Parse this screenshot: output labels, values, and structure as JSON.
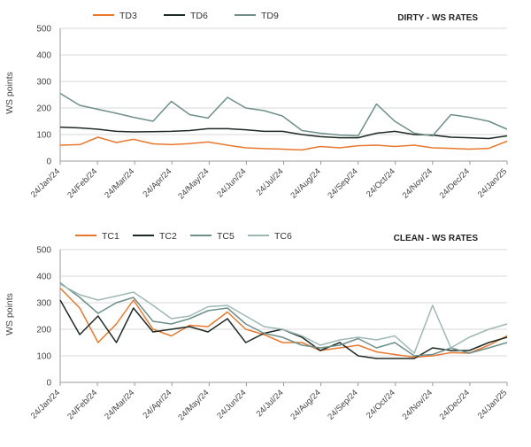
{
  "colors": {
    "TD3": "#e8782f",
    "TD6": "#1e2a24",
    "TD9": "#6e8f8a",
    "TC1": "#e8782f",
    "TC2": "#1e2a24",
    "TC5": "#6e8f8a",
    "TC6": "#9fb8b5"
  },
  "chart_data": [
    {
      "type": "line",
      "title": "DIRTY - WS RATES",
      "xlabel": "",
      "ylabel": "WS points",
      "ylim": [
        0,
        500
      ],
      "yticks": [
        0,
        100,
        200,
        300,
        400,
        500
      ],
      "grid": true,
      "legend": "top",
      "x_ticks": [
        "24/Jan/24",
        "24/Feb/24",
        "24/Mar/24",
        "24/Apr/24",
        "24/May/24",
        "24/Jun/24",
        "24/Jul/24",
        "24/Aug/24",
        "24/Sep/24",
        "24/Oct/24",
        "24/Nov/24",
        "24/Dec/24",
        "24/Jan/25"
      ],
      "x": [
        "2024-01-24",
        "2024-02-09",
        "2024-02-24",
        "2024-03-10",
        "2024-03-24",
        "2024-04-09",
        "2024-04-24",
        "2024-05-09",
        "2024-05-24",
        "2024-06-09",
        "2024-06-24",
        "2024-07-09",
        "2024-07-24",
        "2024-08-09",
        "2024-08-24",
        "2024-09-09",
        "2024-09-24",
        "2024-10-09",
        "2024-10-24",
        "2024-11-09",
        "2024-11-24",
        "2024-12-09",
        "2024-12-24",
        "2025-01-09",
        "2025-01-24"
      ],
      "series": [
        {
          "name": "TD3",
          "values": [
            60,
            62,
            90,
            70,
            82,
            65,
            62,
            66,
            72,
            60,
            50,
            47,
            45,
            42,
            55,
            50,
            58,
            60,
            55,
            60,
            50,
            48,
            45,
            48,
            75
          ]
        },
        {
          "name": "TD6",
          "values": [
            128,
            125,
            120,
            112,
            110,
            111,
            112,
            115,
            122,
            122,
            118,
            112,
            112,
            100,
            92,
            88,
            88,
            105,
            112,
            100,
            98,
            90,
            88,
            85,
            95
          ]
        },
        {
          "name": "TD9",
          "values": [
            255,
            210,
            195,
            180,
            165,
            150,
            225,
            175,
            162,
            240,
            200,
            190,
            170,
            115,
            105,
            98,
            95,
            215,
            150,
            105,
            95,
            175,
            165,
            150,
            120
          ]
        }
      ]
    },
    {
      "type": "line",
      "title": "CLEAN - WS RATES",
      "xlabel": "",
      "ylabel": "WS points",
      "ylim": [
        0,
        500
      ],
      "yticks": [
        0,
        100,
        200,
        300,
        400,
        500
      ],
      "grid": true,
      "legend": "top",
      "x_ticks": [
        "24/Jan/24",
        "24/Feb/24",
        "24/Mar/24",
        "24/Apr/24",
        "24/May/24",
        "24/Jun/24",
        "24/Jul/24",
        "24/Aug/24",
        "24/Sep/24",
        "24/Oct/24",
        "24/Nov/24",
        "24/Dec/24",
        "24/Jan/25"
      ],
      "x": [
        "2024-01-24",
        "2024-02-09",
        "2024-02-24",
        "2024-03-10",
        "2024-03-24",
        "2024-04-09",
        "2024-04-24",
        "2024-05-09",
        "2024-05-24",
        "2024-06-09",
        "2024-06-24",
        "2024-07-09",
        "2024-07-24",
        "2024-08-09",
        "2024-08-24",
        "2024-09-09",
        "2024-09-24",
        "2024-10-09",
        "2024-10-24",
        "2024-11-09",
        "2024-11-24",
        "2024-12-09",
        "2024-12-24",
        "2025-01-09",
        "2025-01-24"
      ],
      "series": [
        {
          "name": "TC1",
          "values": [
            355,
            280,
            150,
            220,
            310,
            200,
            175,
            215,
            210,
            265,
            200,
            180,
            150,
            150,
            120,
            130,
            140,
            115,
            105,
            95,
            100,
            112,
            110,
            140,
            175
          ]
        },
        {
          "name": "TC2",
          "values": [
            310,
            180,
            250,
            150,
            280,
            190,
            200,
            210,
            190,
            240,
            150,
            185,
            200,
            170,
            120,
            150,
            100,
            90,
            90,
            90,
            130,
            120,
            120,
            150,
            170
          ]
        },
        {
          "name": "TC5",
          "values": [
            375,
            320,
            260,
            300,
            320,
            230,
            220,
            240,
            270,
            280,
            220,
            185,
            170,
            140,
            130,
            140,
            165,
            130,
            150,
            100,
            105,
            130,
            110,
            130,
            150
          ]
        },
        {
          "name": "TC6",
          "values": [
            370,
            330,
            310,
            325,
            340,
            290,
            240,
            250,
            285,
            290,
            250,
            210,
            200,
            175,
            140,
            160,
            170,
            160,
            175,
            110,
            290,
            130,
            170,
            200,
            220
          ]
        }
      ]
    }
  ]
}
